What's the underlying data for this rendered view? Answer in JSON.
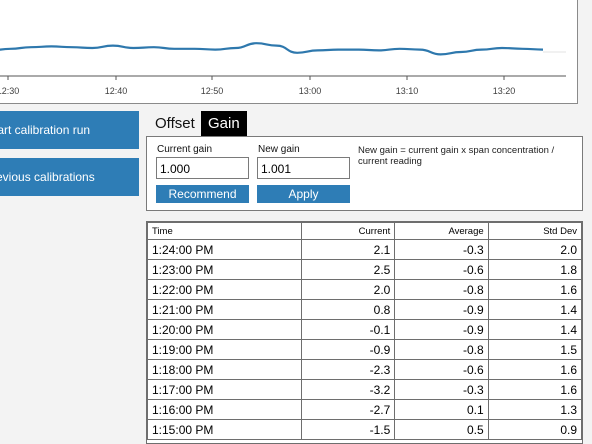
{
  "chart": {
    "x_ticks": [
      "12:30",
      "12:40",
      "12:50",
      "13:00",
      "13:10",
      "13:20"
    ],
    "line_color": "#2e78ad"
  },
  "chart_data": {
    "type": "line",
    "x_tick_labels": [
      "12:30",
      "12:40",
      "12:50",
      "13:00",
      "13:10",
      "13:20"
    ],
    "series": [
      {
        "values": [
          0.2,
          0.4,
          0.6,
          0.7,
          0.6,
          0.5,
          0.8,
          0.5,
          0.6,
          0.4,
          0.4,
          0.3,
          0.5,
          1.1,
          0.8,
          -0.1,
          0.2,
          0.3,
          0.3,
          0.2,
          0.4,
          0.3,
          -0.3,
          0.0,
          0.3,
          0.5,
          0.4,
          0.3
        ]
      }
    ],
    "grid": false
  },
  "side": {
    "start_label": "Start calibration run",
    "previous_label": "Previous calibrations"
  },
  "tabs": {
    "offset": "Offset",
    "gain": "Gain"
  },
  "gain": {
    "current_label": "Current gain",
    "current_value": "1.000",
    "new_label": "New gain",
    "new_value": "1.001",
    "recommend_label": "Recommend",
    "apply_label": "Apply",
    "formula": "New gain = current gain x span concentration / current reading"
  },
  "table": {
    "headers": [
      "Time",
      "Current",
      "Average",
      "Std Dev"
    ],
    "rows": [
      [
        "1:24:00 PM",
        "2.1",
        "-0.3",
        "2.0"
      ],
      [
        "1:23:00 PM",
        "2.5",
        "-0.6",
        "1.8"
      ],
      [
        "1:22:00 PM",
        "2.0",
        "-0.8",
        "1.6"
      ],
      [
        "1:21:00 PM",
        "0.8",
        "-0.9",
        "1.4"
      ],
      [
        "1:20:00 PM",
        "-0.1",
        "-0.9",
        "1.4"
      ],
      [
        "1:19:00 PM",
        "-0.9",
        "-0.8",
        "1.5"
      ],
      [
        "1:18:00 PM",
        "-2.3",
        "-0.6",
        "1.6"
      ],
      [
        "1:17:00 PM",
        "-3.2",
        "-0.3",
        "1.6"
      ],
      [
        "1:16:00 PM",
        "-2.7",
        "0.1",
        "1.3"
      ],
      [
        "1:15:00 PM",
        "-1.5",
        "0.5",
        "0.9"
      ]
    ]
  }
}
